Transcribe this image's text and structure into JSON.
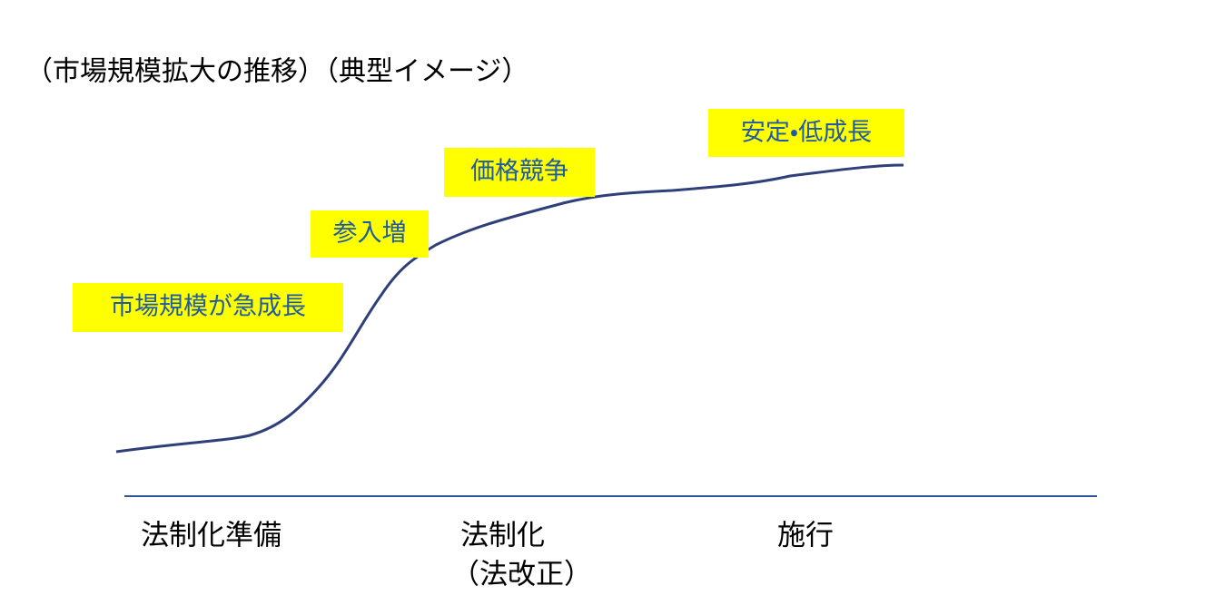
{
  "title": "（市場規模拡大の推移）（典型イメージ）",
  "stages": [
    "市場規模が急成長",
    "参入増",
    "価格競争",
    "安定・低成長"
  ],
  "phases": [
    {
      "label": "法制化準備"
    },
    {
      "label": "法制化",
      "note": "（法改正）"
    },
    {
      "label": "施行"
    }
  ]
}
